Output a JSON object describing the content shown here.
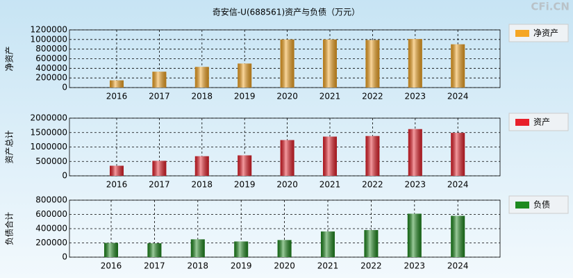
{
  "title": "奇安信-U(688561)资产与负债（万元）",
  "watermark": "CFi.CN",
  "chart_data": [
    {
      "type": "bar",
      "y_label": "净资产",
      "categories": [
        "2016",
        "2017",
        "2018",
        "2019",
        "2020",
        "2021",
        "2022",
        "2023",
        "2024"
      ],
      "series": [
        {
          "name": "净资产",
          "color": "#f5a623",
          "values": [
            150000,
            330000,
            430000,
            500000,
            1000000,
            1000000,
            990000,
            1010000,
            900000
          ]
        }
      ],
      "ylim": [
        0,
        1200000
      ],
      "yticks": [
        0,
        200000,
        400000,
        600000,
        800000,
        1000000,
        1200000
      ],
      "grid": true
    },
    {
      "type": "bar",
      "y_label": "资产总计",
      "categories": [
        "2016",
        "2017",
        "2018",
        "2019",
        "2020",
        "2021",
        "2022",
        "2023",
        "2024"
      ],
      "series": [
        {
          "name": "资产",
          "color": "#e8202a",
          "values": [
            350000,
            520000,
            680000,
            710000,
            1240000,
            1360000,
            1380000,
            1620000,
            1490000
          ]
        }
      ],
      "ylim": [
        0,
        2000000
      ],
      "yticks": [
        0,
        500000,
        1000000,
        1500000,
        2000000
      ],
      "grid": true
    },
    {
      "type": "bar",
      "y_label": "负债合计",
      "categories": [
        "2016",
        "2017",
        "2018",
        "2019",
        "2020",
        "2021",
        "2022",
        "2023",
        "2024"
      ],
      "series": [
        {
          "name": "负债",
          "color": "#1f8a1f",
          "values": [
            200000,
            195000,
            250000,
            220000,
            240000,
            360000,
            380000,
            610000,
            580000
          ]
        }
      ],
      "ylim": [
        0,
        800000
      ],
      "yticks": [
        0,
        200000,
        400000,
        600000,
        800000
      ],
      "grid": true
    }
  ]
}
